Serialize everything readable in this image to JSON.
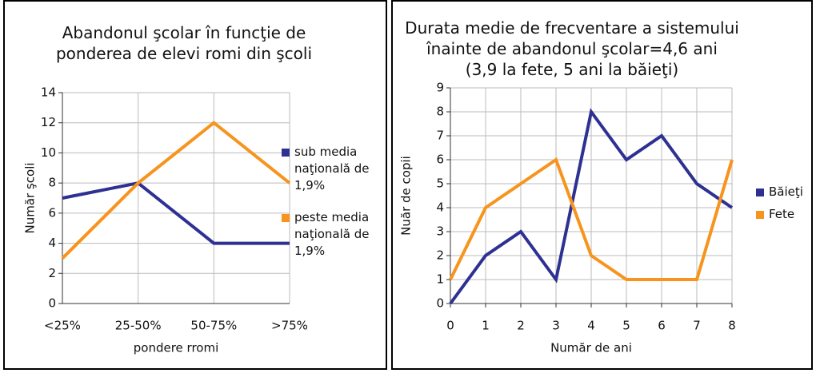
{
  "chart_data": [
    {
      "type": "line",
      "title": [
        "Abandonul şcolar în funcţie de",
        "ponderea de elevi romi din şcoli"
      ],
      "x_label": "pondere rromi",
      "y_label": "Număr şcoli",
      "categories": [
        "<25%",
        "25-50%",
        "50-75%",
        ">75%"
      ],
      "series": [
        {
          "name": "sub media naţională de 1,9%",
          "color": "#2e3192",
          "values": [
            7,
            8,
            4,
            4
          ]
        },
        {
          "name": "peste media naţională de 1,9%",
          "color": "#f7941d",
          "values": [
            3,
            8,
            12,
            8
          ]
        }
      ],
      "ylim": [
        0,
        14
      ],
      "yticks": [
        0,
        2,
        4,
        6,
        8,
        10,
        12,
        14
      ],
      "grid": true,
      "legend": "right"
    },
    {
      "type": "line",
      "title": [
        "Durata medie de frecventare a sistemului",
        "înainte de abandonul şcolar=4,6 ani",
        "(3,9 la fete, 5 ani la băieţi)"
      ],
      "x_label": "Număr de ani",
      "y_label": "Nuăr de copii",
      "x": [
        0,
        1,
        2,
        3,
        4,
        5,
        6,
        7,
        8
      ],
      "series": [
        {
          "name": "Băieţi",
          "color": "#2e3192",
          "values": [
            0,
            2,
            3,
            1,
            8,
            6,
            7,
            5,
            4
          ]
        },
        {
          "name": "Fete",
          "color": "#f7941d",
          "values": [
            1,
            4,
            5,
            6,
            2,
            1,
            1,
            1,
            6
          ]
        }
      ],
      "xlim": [
        0,
        8
      ],
      "xticks": [
        0,
        1,
        2,
        3,
        4,
        5,
        6,
        7,
        8
      ],
      "ylim": [
        0,
        9
      ],
      "yticks": [
        0,
        1,
        2,
        3,
        4,
        5,
        6,
        7,
        8,
        9
      ],
      "grid": true,
      "legend": "right"
    }
  ]
}
